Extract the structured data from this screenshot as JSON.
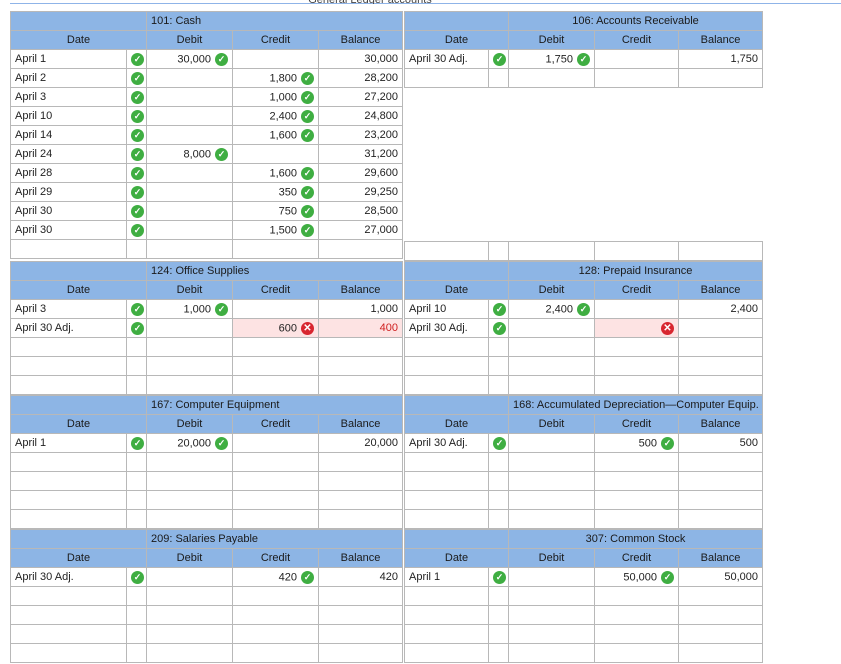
{
  "headers": {
    "date": "Date",
    "debit": "Debit",
    "credit": "Credit",
    "balance": "Balance"
  },
  "top_heading": "General Ledger accounts",
  "ledgers": [
    {
      "id": "cash",
      "title": "101: Cash",
      "rows": [
        {
          "date": "April 1",
          "debit": "30,000",
          "debit_mark": "correct",
          "credit": "",
          "credit_mark": "",
          "balance": "30,000",
          "date_mark": "correct"
        },
        {
          "date": "April 2",
          "debit": "",
          "debit_mark": "",
          "credit": "1,800",
          "credit_mark": "correct",
          "balance": "28,200",
          "date_mark": "correct"
        },
        {
          "date": "April 3",
          "debit": "",
          "debit_mark": "",
          "credit": "1,000",
          "credit_mark": "correct",
          "balance": "27,200",
          "date_mark": "correct"
        },
        {
          "date": "April 10",
          "debit": "",
          "debit_mark": "",
          "credit": "2,400",
          "credit_mark": "correct",
          "balance": "24,800",
          "date_mark": "correct"
        },
        {
          "date": "April 14",
          "debit": "",
          "debit_mark": "",
          "credit": "1,600",
          "credit_mark": "correct",
          "balance": "23,200",
          "date_mark": "correct"
        },
        {
          "date": "April 24",
          "debit": "8,000",
          "debit_mark": "correct",
          "credit": "",
          "credit_mark": "",
          "balance": "31,200",
          "date_mark": "correct"
        },
        {
          "date": "April 28",
          "debit": "",
          "debit_mark": "",
          "credit": "1,600",
          "credit_mark": "correct",
          "balance": "29,600",
          "date_mark": "correct"
        },
        {
          "date": "April 29",
          "debit": "",
          "debit_mark": "",
          "credit": "350",
          "credit_mark": "correct",
          "balance": "29,250",
          "date_mark": "correct"
        },
        {
          "date": "April 30",
          "debit": "",
          "debit_mark": "",
          "credit": "750",
          "credit_mark": "correct",
          "balance": "28,500",
          "date_mark": "correct"
        },
        {
          "date": "April 30",
          "debit": "",
          "debit_mark": "",
          "credit": "1,500",
          "credit_mark": "correct",
          "balance": "27,000",
          "date_mark": "correct"
        },
        {
          "date": "",
          "debit": "",
          "debit_mark": "",
          "credit": "",
          "credit_mark": "",
          "balance": "",
          "date_mark": ""
        }
      ]
    },
    {
      "id": "ar",
      "title": "106: Accounts Receivable",
      "rows": [
        {
          "date": "April 30 Adj.",
          "debit": "1,750",
          "debit_mark": "correct",
          "credit": "",
          "credit_mark": "",
          "balance": "1,750",
          "date_mark": "correct"
        },
        {
          "date": "",
          "debit": "",
          "debit_mark": "",
          "credit": "",
          "credit_mark": "",
          "balance": "",
          "date_mark": ""
        }
      ],
      "trail_rows": [
        {
          "date": "",
          "debit": "",
          "debit_mark": "",
          "credit": "",
          "credit_mark": "",
          "balance": "",
          "date_mark": ""
        }
      ]
    },
    {
      "id": "office",
      "title": "124: Office Supplies",
      "rows": [
        {
          "date": "April 3",
          "debit": "1,000",
          "debit_mark": "correct",
          "credit": "",
          "credit_mark": "",
          "balance": "1,000",
          "date_mark": "correct",
          "balance_wrong": false
        },
        {
          "date": "April 30 Adj.",
          "debit": "",
          "debit_mark": "",
          "credit": "600",
          "credit_mark": "incorrect",
          "balance": "400",
          "date_mark": "correct",
          "balance_wrong": true
        },
        {
          "date": "",
          "debit": "",
          "debit_mark": "",
          "credit": "",
          "credit_mark": "",
          "balance": "",
          "date_mark": ""
        },
        {
          "date": "",
          "debit": "",
          "debit_mark": "",
          "credit": "",
          "credit_mark": "",
          "balance": "",
          "date_mark": ""
        },
        {
          "date": "",
          "debit": "",
          "debit_mark": "",
          "credit": "",
          "credit_mark": "",
          "balance": "",
          "date_mark": ""
        }
      ]
    },
    {
      "id": "prepaid",
      "title": "128: Prepaid Insurance",
      "rows": [
        {
          "date": "April 10",
          "debit": "2,400",
          "debit_mark": "correct",
          "credit": "",
          "credit_mark": "",
          "balance": "2,400",
          "date_mark": "correct"
        },
        {
          "date": "April 30 Adj.",
          "debit": "",
          "debit_mark": "",
          "credit": "",
          "credit_mark": "incorrect",
          "balance": "",
          "date_mark": "correct"
        },
        {
          "date": "",
          "debit": "",
          "debit_mark": "",
          "credit": "",
          "credit_mark": "",
          "balance": "",
          "date_mark": ""
        },
        {
          "date": "",
          "debit": "",
          "debit_mark": "",
          "credit": "",
          "credit_mark": "",
          "balance": "",
          "date_mark": ""
        },
        {
          "date": "",
          "debit": "",
          "debit_mark": "",
          "credit": "",
          "credit_mark": "",
          "balance": "",
          "date_mark": ""
        }
      ]
    },
    {
      "id": "equip",
      "title": "167: Computer Equipment",
      "rows": [
        {
          "date": "April 1",
          "debit": "20,000",
          "debit_mark": "correct",
          "credit": "",
          "credit_mark": "",
          "balance": "20,000",
          "date_mark": "correct"
        },
        {
          "date": "",
          "debit": "",
          "debit_mark": "",
          "credit": "",
          "credit_mark": "",
          "balance": "",
          "date_mark": ""
        },
        {
          "date": "",
          "debit": "",
          "debit_mark": "",
          "credit": "",
          "credit_mark": "",
          "balance": "",
          "date_mark": ""
        },
        {
          "date": "",
          "debit": "",
          "debit_mark": "",
          "credit": "",
          "credit_mark": "",
          "balance": "",
          "date_mark": ""
        },
        {
          "date": "",
          "debit": "",
          "debit_mark": "",
          "credit": "",
          "credit_mark": "",
          "balance": "",
          "date_mark": ""
        }
      ]
    },
    {
      "id": "accdep",
      "title": "168: Accumulated Depreciation—Computer Equip.",
      "rows": [
        {
          "date": "April 30 Adj.",
          "debit": "",
          "debit_mark": "",
          "credit": "500",
          "credit_mark": "correct",
          "balance": "500",
          "date_mark": "correct"
        },
        {
          "date": "",
          "debit": "",
          "debit_mark": "",
          "credit": "",
          "credit_mark": "",
          "balance": "",
          "date_mark": ""
        },
        {
          "date": "",
          "debit": "",
          "debit_mark": "",
          "credit": "",
          "credit_mark": "",
          "balance": "",
          "date_mark": ""
        },
        {
          "date": "",
          "debit": "",
          "debit_mark": "",
          "credit": "",
          "credit_mark": "",
          "balance": "",
          "date_mark": ""
        },
        {
          "date": "",
          "debit": "",
          "debit_mark": "",
          "credit": "",
          "credit_mark": "",
          "balance": "",
          "date_mark": ""
        }
      ]
    },
    {
      "id": "salpay",
      "title": "209: Salaries Payable",
      "rows": [
        {
          "date": "April 30 Adj.",
          "debit": "",
          "debit_mark": "",
          "credit": "420",
          "credit_mark": "correct",
          "balance": "420",
          "date_mark": "correct"
        },
        {
          "date": "",
          "debit": "",
          "debit_mark": "",
          "credit": "",
          "credit_mark": "",
          "balance": "",
          "date_mark": ""
        },
        {
          "date": "",
          "debit": "",
          "debit_mark": "",
          "credit": "",
          "credit_mark": "",
          "balance": "",
          "date_mark": ""
        },
        {
          "date": "",
          "debit": "",
          "debit_mark": "",
          "credit": "",
          "credit_mark": "",
          "balance": "",
          "date_mark": ""
        },
        {
          "date": "",
          "debit": "",
          "debit_mark": "",
          "credit": "",
          "credit_mark": "",
          "balance": "",
          "date_mark": ""
        }
      ]
    },
    {
      "id": "stock",
      "title": "307: Common Stock",
      "rows": [
        {
          "date": "April 1",
          "debit": "",
          "debit_mark": "",
          "credit": "50,000",
          "credit_mark": "correct",
          "balance": "50,000",
          "date_mark": "correct"
        },
        {
          "date": "",
          "debit": "",
          "debit_mark": "",
          "credit": "",
          "credit_mark": "",
          "balance": "",
          "date_mark": ""
        },
        {
          "date": "",
          "debit": "",
          "debit_mark": "",
          "credit": "",
          "credit_mark": "",
          "balance": "",
          "date_mark": ""
        },
        {
          "date": "",
          "debit": "",
          "debit_mark": "",
          "credit": "",
          "credit_mark": "",
          "balance": "",
          "date_mark": ""
        },
        {
          "date": "",
          "debit": "",
          "debit_mark": "",
          "credit": "",
          "credit_mark": "",
          "balance": "",
          "date_mark": ""
        }
      ]
    }
  ],
  "status_colors": {
    "correct": "#3fae42",
    "incorrect": "#d8262f",
    "header_bg": "#8db5e5"
  }
}
